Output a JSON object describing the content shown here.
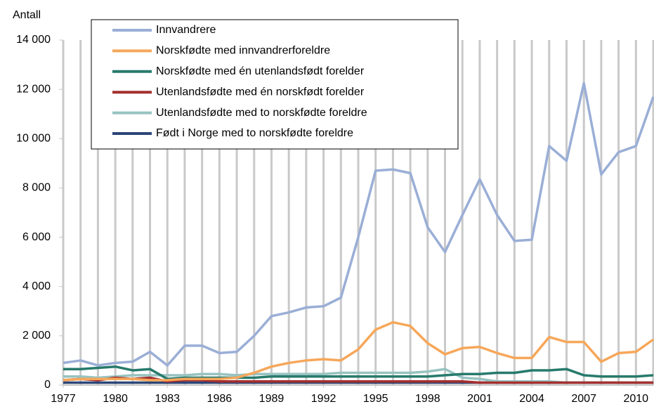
{
  "chart_data": {
    "type": "line",
    "y_label": "Antall",
    "x": [
      1977,
      1978,
      1979,
      1980,
      1981,
      1982,
      1983,
      1984,
      1985,
      1986,
      1987,
      1988,
      1989,
      1990,
      1991,
      1992,
      1993,
      1994,
      1995,
      1996,
      1997,
      1998,
      1999,
      2000,
      2001,
      2002,
      2003,
      2004,
      2005,
      2006,
      2007,
      2008,
      2009,
      2010,
      2011
    ],
    "xlim": [
      1977,
      2011
    ],
    "xticks": [
      1977,
      1980,
      1983,
      1986,
      1989,
      1992,
      1995,
      1998,
      2001,
      2004,
      2007,
      2010
    ],
    "ylim": [
      0,
      14000
    ],
    "yticks": [
      0,
      {
        "value": 2000,
        "label": "2 000"
      },
      {
        "value": 4000,
        "label": "4 000"
      },
      {
        "value": 6000,
        "label": "6 000"
      },
      {
        "value": 8000,
        "label": "8 000"
      },
      {
        "value": 10000,
        "label": "10 000"
      },
      {
        "value": 12000,
        "label": "12 000"
      },
      {
        "value": 14000,
        "label": "14 000"
      }
    ],
    "grid": "x",
    "legend": "top-left",
    "series": [
      {
        "name": "Innvandrere",
        "color": "#9aaed6",
        "values": [
          900,
          1000,
          800,
          900,
          950,
          1350,
          800,
          1600,
          1600,
          1300,
          1350,
          2000,
          2800,
          2950,
          3150,
          3200,
          3550,
          6000,
          8700,
          8750,
          8600,
          6400,
          5400,
          6900,
          8350,
          6900,
          5850,
          5900,
          9700,
          9100,
          12250,
          8550,
          9450,
          9700,
          11700
        ]
      },
      {
        "name": "Norskfødte med innvandrerforeldre",
        "color": "#f6a75a",
        "values": [
          200,
          250,
          250,
          250,
          250,
          200,
          200,
          250,
          250,
          250,
          300,
          500,
          750,
          900,
          1000,
          1050,
          1000,
          1450,
          2250,
          2550,
          2400,
          1700,
          1250,
          1500,
          1550,
          1300,
          1100,
          1100,
          1950,
          1750,
          1750,
          950,
          1300,
          1350,
          1850
        ]
      },
      {
        "name": "Norskfødte med én utenlandsfødt forelder",
        "color": "#277a6c",
        "values": [
          650,
          650,
          700,
          750,
          600,
          650,
          250,
          300,
          300,
          300,
          300,
          300,
          350,
          350,
          350,
          350,
          350,
          350,
          350,
          350,
          350,
          350,
          400,
          450,
          450,
          500,
          500,
          600,
          600,
          650,
          400,
          350,
          350,
          350,
          400
        ]
      },
      {
        "name": "Utenlandsfødte med én norskfødt forelder",
        "color": "#a4302f",
        "values": [
          200,
          250,
          200,
          300,
          250,
          300,
          150,
          200,
          200,
          150,
          150,
          150,
          150,
          150,
          150,
          150,
          150,
          150,
          150,
          150,
          150,
          150,
          150,
          150,
          100,
          100,
          100,
          100,
          100,
          100,
          100,
          100,
          100,
          100,
          100
        ]
      },
      {
        "name": "Utenlandsfødte med to norskfødte foreldre",
        "color": "#97c3c0",
        "values": [
          350,
          350,
          300,
          350,
          400,
          400,
          400,
          400,
          450,
          450,
          400,
          450,
          450,
          450,
          450,
          450,
          500,
          500,
          500,
          500,
          500,
          550,
          650,
          300,
          250,
          150,
          150,
          150,
          150,
          100,
          100,
          100,
          100,
          100,
          100
        ]
      },
      {
        "name": "Født i Norge med to norskfødte foreldre",
        "color": "#2c4677",
        "values": [
          100,
          100,
          100,
          100,
          100,
          100,
          100,
          100,
          100,
          100,
          100,
          100,
          100,
          100,
          100,
          100,
          100,
          100,
          100,
          100,
          100,
          100,
          100,
          100,
          100,
          100,
          100,
          100,
          100,
          100,
          100,
          100,
          100,
          100,
          100
        ]
      }
    ]
  }
}
